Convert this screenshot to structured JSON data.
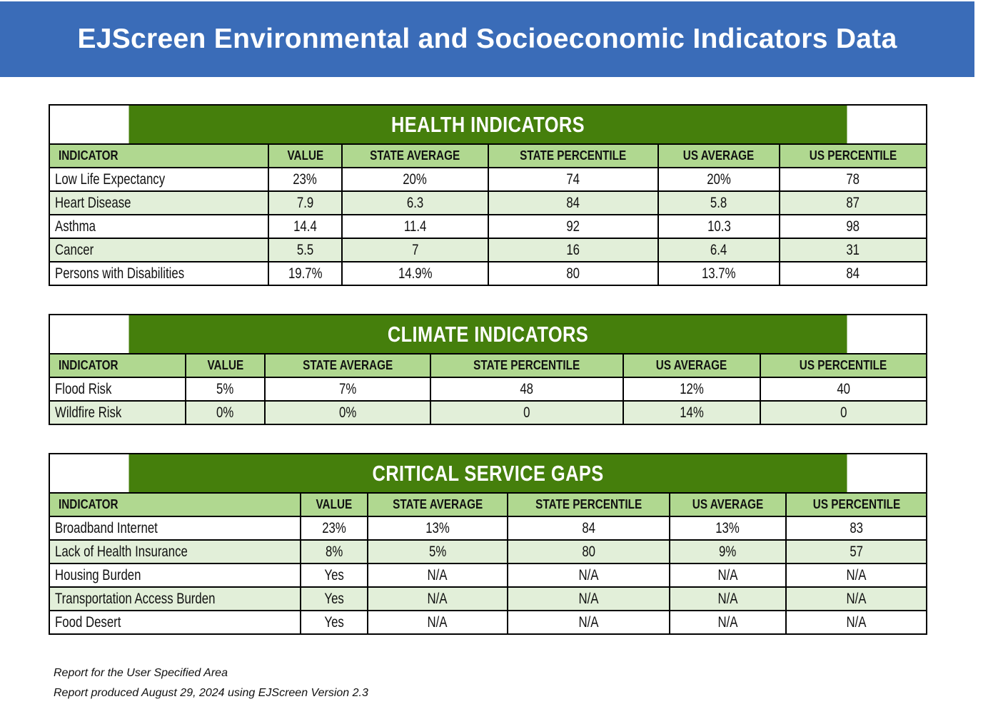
{
  "page_title": "EJScreen Environmental and Socioeconomic Indicators Data",
  "columns": [
    "INDICATOR",
    "VALUE",
    "STATE AVERAGE",
    "STATE PERCENTILE",
    "US AVERAGE",
    "US PERCENTILE"
  ],
  "sections": [
    {
      "title": "HEALTH INDICATORS",
      "rows": [
        [
          "Low Life Expectancy",
          "23%",
          "20%",
          "74",
          "20%",
          "78"
        ],
        [
          "Heart Disease",
          "7.9",
          "6.3",
          "84",
          "5.8",
          "87"
        ],
        [
          "Asthma",
          "14.4",
          "11.4",
          "92",
          "10.3",
          "98"
        ],
        [
          "Cancer",
          "5.5",
          "7",
          "16",
          "6.4",
          "31"
        ],
        [
          "Persons with Disabilities",
          "19.7%",
          "14.9%",
          "80",
          "13.7%",
          "84"
        ]
      ]
    },
    {
      "title": "CLIMATE INDICATORS",
      "rows": [
        [
          "Flood Risk",
          "5%",
          "7%",
          "48",
          "12%",
          "40"
        ],
        [
          "Wildfire Risk",
          "0%",
          "0%",
          "0",
          "14%",
          "0"
        ]
      ]
    },
    {
      "title": "CRITICAL SERVICE GAPS",
      "rows": [
        [
          "Broadband Internet",
          "23%",
          "13%",
          "84",
          "13%",
          "83"
        ],
        [
          "Lack of Health Insurance",
          "8%",
          "5%",
          "80",
          "9%",
          "57"
        ],
        [
          "Housing Burden",
          "Yes",
          "N/A",
          "N/A",
          "N/A",
          "N/A"
        ],
        [
          "Transportation Access Burden",
          "Yes",
          "N/A",
          "N/A",
          "N/A",
          "N/A"
        ],
        [
          "Food Desert",
          "Yes",
          "N/A",
          "N/A",
          "N/A",
          "N/A"
        ]
      ]
    }
  ],
  "footer": {
    "line1": "Report for the User Specified Area",
    "line2": "Report produced August 29, 2024 using EJScreen Version 2.3"
  },
  "colors": {
    "header_blue": "#3a6cb8",
    "section_green": "#457f0c",
    "column_header_green": "#b0d890",
    "alt_row_green": "#e2efd9"
  }
}
